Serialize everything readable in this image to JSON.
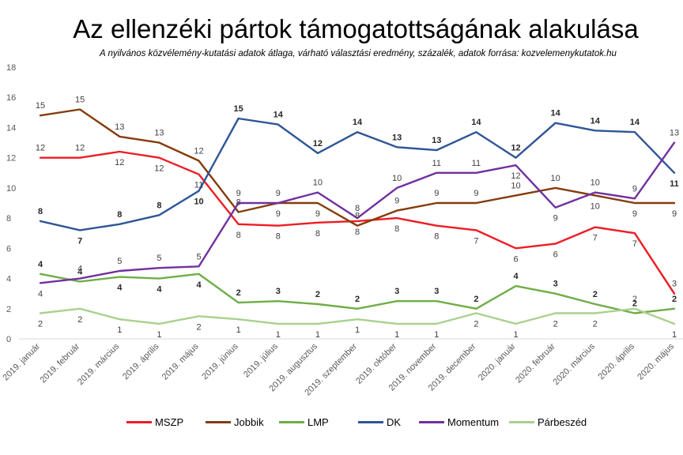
{
  "chart_data": {
    "type": "line",
    "title": "Az ellenzéki pártok támogatottságának alakulása",
    "subtitle": "A nyilvános közvélemény-kutatási adatok átlaga, várható választási eredmény, százalék, adatok forrása: kozvelemenykutatok.hu",
    "categories": [
      "2019. január",
      "2019. február",
      "2019. március",
      "2019. április",
      "2019. május",
      "2019. június",
      "2019. július",
      "2019. augusztus",
      "2019. szeptember",
      "2019. október",
      "2019. november",
      "2019. december",
      "2020. január",
      "2020. február",
      "2020. március",
      "2020. április",
      "2020. május"
    ],
    "ylim": [
      0,
      18
    ],
    "yticks": [
      "0",
      "2",
      "4",
      "6",
      "8",
      "10",
      "12",
      "14",
      "16",
      "18"
    ],
    "grid": false,
    "legend_position": "bottom",
    "series": [
      {
        "name": "MSZP",
        "color": "#ee1c24",
        "values": [
          12,
          12,
          12.4,
          12,
          10.9,
          7.6,
          7.5,
          7.7,
          7.8,
          8,
          7.5,
          7.2,
          6,
          6.3,
          7.4,
          7,
          3
        ],
        "labels": [
          "12",
          "12",
          "12",
          "12",
          "11",
          "8",
          "8",
          "8",
          "8",
          "8",
          "8",
          "7",
          "6",
          "6",
          "7",
          "7",
          "3"
        ]
      },
      {
        "name": "Jobbik",
        "color": "#843c0c",
        "values": [
          14.8,
          15.2,
          13.4,
          13,
          11.8,
          8.4,
          9,
          9,
          7.5,
          8.5,
          9,
          9,
          9.5,
          10,
          9.5,
          9,
          9
        ],
        "labels": [
          "15",
          "15",
          "13",
          "13",
          "12",
          "8",
          "9",
          "9",
          "8",
          "9",
          "9",
          "9",
          "10",
          "10",
          "10",
          "9",
          "9"
        ]
      },
      {
        "name": "LMP",
        "color": "#70ad47",
        "values": [
          4.3,
          3.8,
          4.1,
          4,
          4.3,
          2.4,
          2.5,
          2.3,
          2,
          2.5,
          2.5,
          2,
          3.5,
          3,
          2.3,
          1.7,
          2
        ],
        "labels": [
          "4",
          "4",
          "4",
          "4",
          "4",
          "2",
          "3",
          "2",
          "2",
          "3",
          "3",
          "2",
          "4",
          "3",
          "2",
          "2",
          "2"
        ]
      },
      {
        "name": "DK",
        "color": "#2f5597",
        "values": [
          7.8,
          7.2,
          7.6,
          8.2,
          9.8,
          14.6,
          14.2,
          12.3,
          13.7,
          12.7,
          12.5,
          13.7,
          12,
          14.3,
          13.8,
          13.7,
          11
        ],
        "labels": [
          "8",
          "7",
          "8",
          "8",
          "10",
          "15",
          "14",
          "12",
          "14",
          "13",
          "13",
          "14",
          "12",
          "14",
          "14",
          "14",
          "11"
        ]
      },
      {
        "name": "Momentum",
        "color": "#7030a0",
        "values": [
          3.7,
          4,
          4.5,
          4.7,
          4.8,
          9,
          9,
          9.7,
          8,
          10,
          11,
          11,
          11.5,
          8.7,
          9.7,
          9.3,
          13
        ],
        "labels": [
          "4",
          "4",
          "5",
          "5",
          "5",
          "9",
          "9",
          "10",
          "8",
          "10",
          "11",
          "11",
          "12",
          "9",
          "10",
          "9",
          "13"
        ]
      },
      {
        "name": "Párbeszéd",
        "color": "#a9d18e",
        "values": [
          1.7,
          2,
          1.3,
          1,
          1.5,
          1.3,
          1,
          1,
          1.3,
          1,
          1,
          1.7,
          1,
          1.7,
          1.7,
          2,
          1
        ],
        "labels": [
          "2",
          "2",
          "1",
          "1",
          "2",
          "1",
          "1",
          "1",
          "1",
          "1",
          "1",
          "2",
          "1",
          "2",
          "2",
          "2",
          "1"
        ]
      }
    ]
  }
}
